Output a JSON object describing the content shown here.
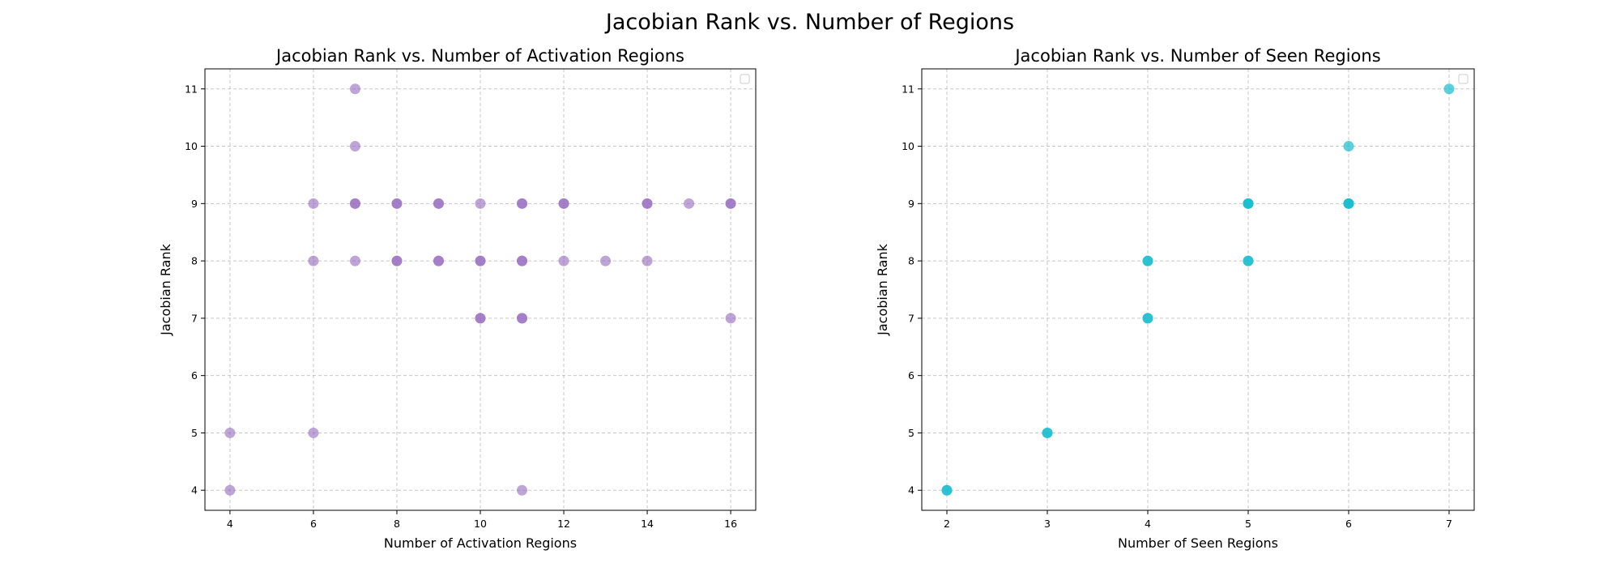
{
  "figure": {
    "title": "Jacobian Rank vs. Number of Regions"
  },
  "chart_data": [
    {
      "type": "scatter",
      "title": "Jacobian Rank vs. Number of Activation Regions",
      "xlabel": "Number of Activation Regions",
      "ylabel": "Jacobian Rank",
      "xlim": [
        3.4,
        16.6
      ],
      "ylim": [
        3.65,
        11.35
      ],
      "xticks": [
        4,
        6,
        8,
        10,
        12,
        14,
        16
      ],
      "yticks": [
        4,
        5,
        6,
        7,
        8,
        9,
        10,
        11
      ],
      "grid": true,
      "legend": "top-right (empty)",
      "color": "#9467bd",
      "alpha": 0.6,
      "points": [
        {
          "x": 4,
          "y": 4
        },
        {
          "x": 4,
          "y": 5
        },
        {
          "x": 6,
          "y": 5
        },
        {
          "x": 6,
          "y": 8
        },
        {
          "x": 6,
          "y": 9
        },
        {
          "x": 7,
          "y": 8
        },
        {
          "x": 7,
          "y": 9
        },
        {
          "x": 7,
          "y": 9
        },
        {
          "x": 7,
          "y": 10
        },
        {
          "x": 7,
          "y": 11
        },
        {
          "x": 8,
          "y": 8
        },
        {
          "x": 8,
          "y": 8
        },
        {
          "x": 8,
          "y": 9
        },
        {
          "x": 8,
          "y": 9
        },
        {
          "x": 9,
          "y": 8
        },
        {
          "x": 9,
          "y": 8
        },
        {
          "x": 9,
          "y": 9
        },
        {
          "x": 9,
          "y": 9
        },
        {
          "x": 10,
          "y": 7
        },
        {
          "x": 10,
          "y": 7
        },
        {
          "x": 10,
          "y": 8
        },
        {
          "x": 10,
          "y": 8
        },
        {
          "x": 10,
          "y": 9
        },
        {
          "x": 11,
          "y": 4
        },
        {
          "x": 11,
          "y": 7
        },
        {
          "x": 11,
          "y": 7
        },
        {
          "x": 11,
          "y": 8
        },
        {
          "x": 11,
          "y": 8
        },
        {
          "x": 11,
          "y": 9
        },
        {
          "x": 11,
          "y": 9
        },
        {
          "x": 12,
          "y": 8
        },
        {
          "x": 12,
          "y": 9
        },
        {
          "x": 12,
          "y": 9
        },
        {
          "x": 13,
          "y": 8
        },
        {
          "x": 14,
          "y": 8
        },
        {
          "x": 14,
          "y": 9
        },
        {
          "x": 14,
          "y": 9
        },
        {
          "x": 15,
          "y": 9
        },
        {
          "x": 16,
          "y": 7
        },
        {
          "x": 16,
          "y": 9
        },
        {
          "x": 16,
          "y": 9
        }
      ]
    },
    {
      "type": "scatter",
      "title": "Jacobian Rank vs. Number of Seen Regions",
      "xlabel": "Number of Seen Regions",
      "ylabel": "Jacobian Rank",
      "xlim": [
        1.75,
        7.25
      ],
      "ylim": [
        3.65,
        11.35
      ],
      "xticks": [
        2,
        3,
        4,
        5,
        6,
        7
      ],
      "yticks": [
        4,
        5,
        6,
        7,
        8,
        9,
        10,
        11
      ],
      "grid": true,
      "legend": "top-right (empty)",
      "color": "#17becf",
      "alpha": 0.7,
      "points": [
        {
          "x": 2,
          "y": 4
        },
        {
          "x": 2,
          "y": 4
        },
        {
          "x": 3,
          "y": 5
        },
        {
          "x": 3,
          "y": 5
        },
        {
          "x": 4,
          "y": 7
        },
        {
          "x": 4,
          "y": 7
        },
        {
          "x": 4,
          "y": 8
        },
        {
          "x": 4,
          "y": 8
        },
        {
          "x": 5,
          "y": 8
        },
        {
          "x": 5,
          "y": 8
        },
        {
          "x": 5,
          "y": 9
        },
        {
          "x": 5,
          "y": 9
        },
        {
          "x": 5,
          "y": 9
        },
        {
          "x": 6,
          "y": 9
        },
        {
          "x": 6,
          "y": 9
        },
        {
          "x": 6,
          "y": 9
        },
        {
          "x": 6,
          "y": 10
        },
        {
          "x": 7,
          "y": 11
        }
      ]
    }
  ]
}
